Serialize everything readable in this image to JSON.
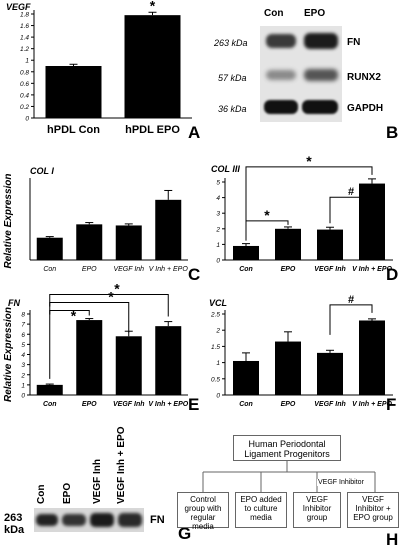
{
  "panel_letters": [
    "A",
    "B",
    "C",
    "D",
    "E",
    "F",
    "G",
    "H"
  ],
  "panel_titles": {
    "A": "VEGF",
    "C": "COL I",
    "D": "COL III",
    "E": "FN",
    "F": "VCL"
  },
  "shared_ylabel": "Relative Expression",
  "sig_marks": {
    "A": "*",
    "C_sig": "",
    "D_star1": "*",
    "D_star2": "*",
    "D_hash": "#",
    "E_star1": "*",
    "E_star2": "*",
    "E_star3": "*",
    "F_hash": "#"
  },
  "chart_data": [
    {
      "panel": "A",
      "type": "bar",
      "title": "VEGF",
      "categories": [
        "hPDL Con",
        "hPDL EPO"
      ],
      "values": [
        0.9,
        1.78
      ],
      "errors": [
        0.03,
        0.05
      ],
      "ylim": [
        0,
        1.8
      ],
      "yticks": [
        0,
        0.2,
        0.4,
        0.6,
        0.8,
        1,
        1.2,
        1.4,
        1.6,
        1.8
      ]
    },
    {
      "panel": "C",
      "type": "bar",
      "title": "COL I",
      "categories": [
        "Con",
        "EPO",
        "VEGF Inh",
        "V Inh + EPO"
      ],
      "values": [
        1.0,
        1.6,
        1.55,
        2.7
      ],
      "errors": [
        0.05,
        0.08,
        0.07,
        0.42
      ],
      "ylabel": "Relative Expression",
      "ylim": [
        0,
        3.5
      ]
    },
    {
      "panel": "D",
      "type": "bar",
      "title": "COL III",
      "categories": [
        "Con",
        "EPO",
        "VEGF Inh",
        "V Inh + EPO"
      ],
      "values": [
        0.9,
        2.0,
        1.95,
        4.9
      ],
      "errors": [
        0.15,
        0.12,
        0.15,
        0.3
      ],
      "ylim": [
        0,
        5
      ],
      "yticks": [
        0,
        1,
        2,
        3,
        4,
        5
      ]
    },
    {
      "panel": "E",
      "type": "bar",
      "title": "FN",
      "categories": [
        "Con",
        "EPO",
        "VEGF Inh",
        "V Inh + EPO"
      ],
      "values": [
        1.0,
        7.4,
        5.8,
        6.8
      ],
      "errors": [
        0.08,
        0.15,
        0.5,
        0.45
      ],
      "ylabel": "Relative Expression",
      "ylim": [
        0,
        8
      ],
      "yticks": [
        0,
        1,
        2,
        3,
        4,
        5,
        6,
        7,
        8
      ]
    },
    {
      "panel": "F",
      "type": "bar",
      "title": "VCL",
      "categories": [
        "Con",
        "EPO",
        "VEGF Inh",
        "V Inh + EPO"
      ],
      "values": [
        1.05,
        1.65,
        1.3,
        2.3
      ],
      "errors": [
        0.25,
        0.3,
        0.08,
        0.05
      ],
      "ylim": [
        0,
        2.5
      ],
      "yticks": [
        0,
        0.5,
        1,
        1.5,
        2,
        2.5
      ]
    }
  ],
  "blot_B": {
    "lanes": [
      "Con",
      "EPO"
    ],
    "bands": [
      {
        "kda": "263 kDa",
        "name": "FN"
      },
      {
        "kda": "57 kDa",
        "name": "RUNX2"
      },
      {
        "kda": "36 kDa",
        "name": "GAPDH"
      }
    ]
  },
  "blot_G": {
    "lanes": [
      "Con",
      "EPO",
      "VEGF Inh",
      "VEGF Inh + EPO"
    ],
    "kda": "263 kDa",
    "band": "FN"
  },
  "diagram_H": {
    "root": "Human Periodontal Ligament Progenitors",
    "arrow_label": "VEGF Inhibitor",
    "children": [
      "Control group with regular media",
      "EPO added to culture media",
      "VEGF Inhibitor group",
      "VEGF Inhibitor + EPO group"
    ]
  },
  "colors": {
    "bar": "#000000",
    "text": "#000000",
    "background": "#ffffff"
  }
}
